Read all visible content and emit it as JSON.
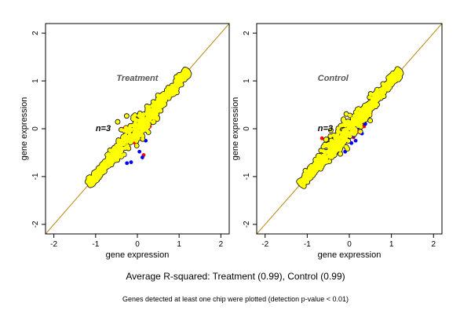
{
  "colors": {
    "background": "#ffffff",
    "panel_bg": "#ffffff",
    "frame": "#000000",
    "diagonal": "#b8860b",
    "cloud_outline": "#000000",
    "up": "#ff0000",
    "down": "#0000ff",
    "points": "#ffff00",
    "panel_label": "#555555"
  },
  "chart_data": [
    {
      "type": "scatter",
      "title": "Treatment",
      "annotation": "n=3",
      "xlabel": "gene expression",
      "ylabel": "gene expression",
      "xlim": [
        -2.2,
        2.2
      ],
      "ylim": [
        -2.2,
        2.2
      ],
      "xticks": [
        "-2",
        "-1",
        "0",
        "1",
        "2"
      ],
      "yticks": [
        "-2",
        "-1",
        "0",
        "1",
        "2"
      ],
      "diagonal": [
        [
          -2.2,
          -2.2
        ],
        [
          2.2,
          2.2
        ]
      ],
      "cloud": {
        "x_range": [
          -1.15,
          1.2
        ],
        "spread": 0.12,
        "series_color": "yellow"
      },
      "series": [
        {
          "color": "red",
          "points": [
            [
              -0.1,
              0.25
            ],
            [
              0.05,
              0.02
            ],
            [
              0.1,
              -0.12
            ],
            [
              -0.05,
              -0.3
            ],
            [
              0.15,
              -0.55
            ],
            [
              -0.6,
              -0.68
            ],
            [
              -0.9,
              -0.92
            ],
            [
              0.3,
              0.05
            ],
            [
              -0.3,
              0.02
            ],
            [
              0.4,
              0.2
            ]
          ]
        },
        {
          "color": "blue",
          "points": [
            [
              -0.25,
              -0.72
            ],
            [
              -0.15,
              -0.7
            ],
            [
              0.05,
              -0.48
            ],
            [
              0.12,
              -0.6
            ],
            [
              -0.15,
              -0.28
            ],
            [
              0.2,
              -0.25
            ],
            [
              -0.3,
              -0.55
            ],
            [
              -0.95,
              -0.98
            ]
          ]
        }
      ]
    },
    {
      "type": "scatter",
      "title": "Control",
      "annotation": "n=3",
      "xlabel": "gene expression",
      "ylabel": "gene expression",
      "xlim": [
        -2.2,
        2.2
      ],
      "ylim": [
        -2.2,
        2.2
      ],
      "xticks": [
        "-2",
        "-1",
        "0",
        "1",
        "2"
      ],
      "yticks": [
        "-2",
        "-1",
        "0",
        "1",
        "2"
      ],
      "diagonal": [
        [
          -2.2,
          -2.2
        ],
        [
          2.2,
          2.2
        ]
      ],
      "cloud": {
        "x_range": [
          -1.15,
          1.2
        ],
        "spread": 0.12,
        "series_color": "yellow"
      },
      "series": [
        {
          "color": "red",
          "points": [
            [
              -0.65,
              -0.2
            ],
            [
              0.1,
              -0.18
            ],
            [
              0.2,
              -0.05
            ],
            [
              -0.4,
              -0.52
            ],
            [
              0.5,
              0.3
            ],
            [
              0.35,
              0.05
            ],
            [
              -0.7,
              -0.75
            ]
          ]
        },
        {
          "color": "blue",
          "points": [
            [
              0.0,
              -0.12
            ],
            [
              0.1,
              -0.15
            ],
            [
              0.18,
              0.0
            ],
            [
              0.05,
              -0.3
            ],
            [
              -0.1,
              -0.48
            ],
            [
              -0.5,
              -0.55
            ],
            [
              -0.5,
              -0.68
            ],
            [
              0.15,
              -0.25
            ],
            [
              0.3,
              -0.1
            ],
            [
              0.38,
              0.1
            ]
          ]
        }
      ]
    }
  ],
  "summary": "Average R-squared: Treatment (0.99), Control (0.99)",
  "footnote": "Genes detected at least one chip were plotted (detection p-value < 0.01)"
}
